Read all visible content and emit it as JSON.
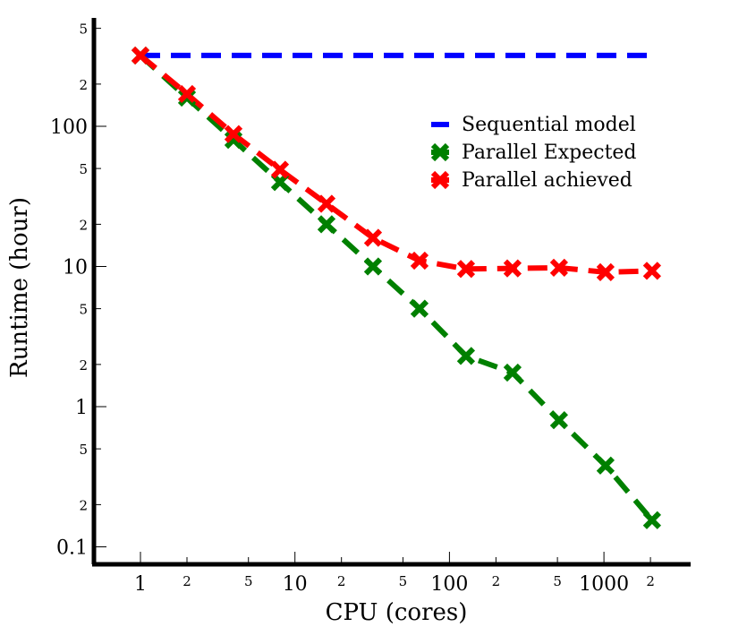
{
  "chart_data": {
    "type": "line",
    "title": "",
    "xlabel": "CPU (cores)",
    "ylabel": "Runtime (hour)",
    "xscale": "log",
    "yscale": "log",
    "xlim": [
      0.5,
      3000
    ],
    "ylim": [
      0.08,
      550
    ],
    "grid": false,
    "legend_position": "upper-right",
    "x_major_ticks": [
      {
        "value": 1,
        "label": "1"
      },
      {
        "value": 10,
        "label": "10"
      },
      {
        "value": 100,
        "label": "100"
      },
      {
        "value": 1000,
        "label": "1000"
      }
    ],
    "x_minor_ticks": [
      {
        "value": 2,
        "label": "2"
      },
      {
        "value": 5,
        "label": "5"
      },
      {
        "value": 20,
        "label": "2"
      },
      {
        "value": 50,
        "label": "5"
      },
      {
        "value": 200,
        "label": "2"
      },
      {
        "value": 500,
        "label": "5"
      },
      {
        "value": 2000,
        "label": "2"
      }
    ],
    "y_major_ticks": [
      {
        "value": 0.1,
        "label": "0.1"
      },
      {
        "value": 1,
        "label": "1"
      },
      {
        "value": 10,
        "label": "10"
      },
      {
        "value": 100,
        "label": "100"
      }
    ],
    "y_minor_ticks": [
      {
        "value": 0.2,
        "label": "2"
      },
      {
        "value": 0.5,
        "label": "5"
      },
      {
        "value": 2,
        "label": "2"
      },
      {
        "value": 5,
        "label": "5"
      },
      {
        "value": 20,
        "label": "2"
      },
      {
        "value": 50,
        "label": "5"
      },
      {
        "value": 200,
        "label": "2"
      },
      {
        "value": 500,
        "label": "5"
      }
    ],
    "series": [
      {
        "name": "Sequential model",
        "color": "#0000ff",
        "marker": "none",
        "x": [
          1,
          2048
        ],
        "y": [
          320,
          320
        ]
      },
      {
        "name": "Parallel Expected",
        "color": "#008000",
        "marker": "x",
        "x": [
          1,
          2,
          4,
          8,
          16,
          32,
          64,
          128,
          256,
          512,
          1024,
          2048
        ],
        "y": [
          320,
          160,
          80,
          40,
          20,
          10,
          5,
          2.3,
          1.75,
          0.8,
          0.38,
          0.155
        ]
      },
      {
        "name": "Parallel achieved",
        "color": "#ff0000",
        "marker": "x",
        "x": [
          1,
          2,
          4,
          8,
          16,
          32,
          64,
          128,
          256,
          512,
          1024,
          2048
        ],
        "y": [
          320,
          170,
          88,
          49,
          28,
          16,
          11,
          9.6,
          9.7,
          9.8,
          9.1,
          9.3
        ]
      }
    ]
  }
}
